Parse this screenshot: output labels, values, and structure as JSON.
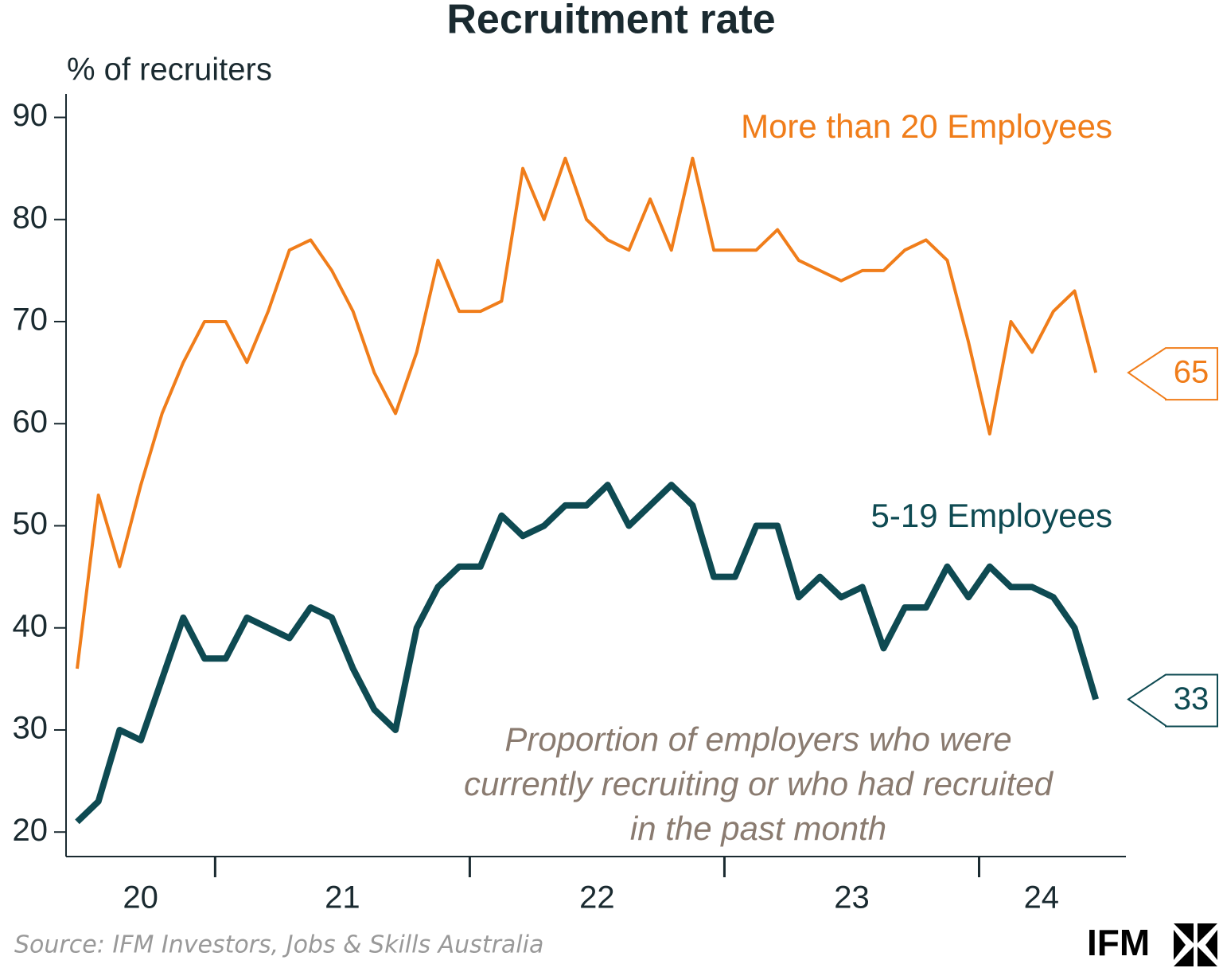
{
  "chart_data": {
    "type": "line",
    "title": "Recruitment rate",
    "y_axis_label": "% of recruiters",
    "categories": [
      null,
      null,
      null,
      null,
      null,
      null,
      null,
      null,
      null,
      null,
      null,
      null,
      null,
      null,
      null,
      null,
      null,
      null,
      null,
      null,
      null,
      null,
      null,
      null,
      null,
      null,
      null,
      null,
      null,
      null,
      null,
      null,
      null,
      null,
      null,
      null,
      null,
      null,
      null,
      null,
      null,
      null,
      null,
      null,
      null,
      null,
      null,
      null,
      null
    ],
    "x_axis_labels": [
      "20",
      "21",
      "22",
      "23",
      "24"
    ],
    "series": [
      {
        "name": "More than 20 Employees",
        "color": "#f07d1a",
        "width": 4,
        "values": [
          36,
          53,
          46,
          54,
          61,
          66,
          70,
          70,
          66,
          71,
          77,
          78,
          75,
          71,
          65,
          61,
          67,
          76,
          71,
          71,
          72,
          85,
          80,
          86,
          80,
          78,
          77,
          82,
          77,
          86,
          77,
          77,
          77,
          79,
          76,
          75,
          74,
          75,
          75,
          77,
          78,
          76,
          68,
          59,
          70,
          67,
          71,
          73,
          65
        ]
      },
      {
        "name": "5-19 Employees",
        "color": "#0e4a52",
        "width": 8,
        "values": [
          21,
          23,
          30,
          29,
          35,
          41,
          37,
          37,
          41,
          40,
          39,
          42,
          41,
          36,
          32,
          30,
          40,
          44,
          46,
          46,
          51,
          49,
          50,
          52,
          52,
          54,
          50,
          52,
          54,
          52,
          45,
          45,
          50,
          50,
          43,
          45,
          43,
          44,
          38,
          42,
          42,
          46,
          43,
          46,
          44,
          44,
          43,
          40,
          33
        ]
      }
    ],
    "ylim": [
      17.6,
      92.3
    ],
    "yticks": [
      20,
      30,
      40,
      50,
      60,
      70,
      80,
      90
    ],
    "annotation": [
      "Proportion of employers who were",
      "currently recruiting or who had recruited",
      "in the past month"
    ],
    "source": "Source: IFM Investors, Jobs & Skills Australia",
    "logo": "IFM"
  }
}
